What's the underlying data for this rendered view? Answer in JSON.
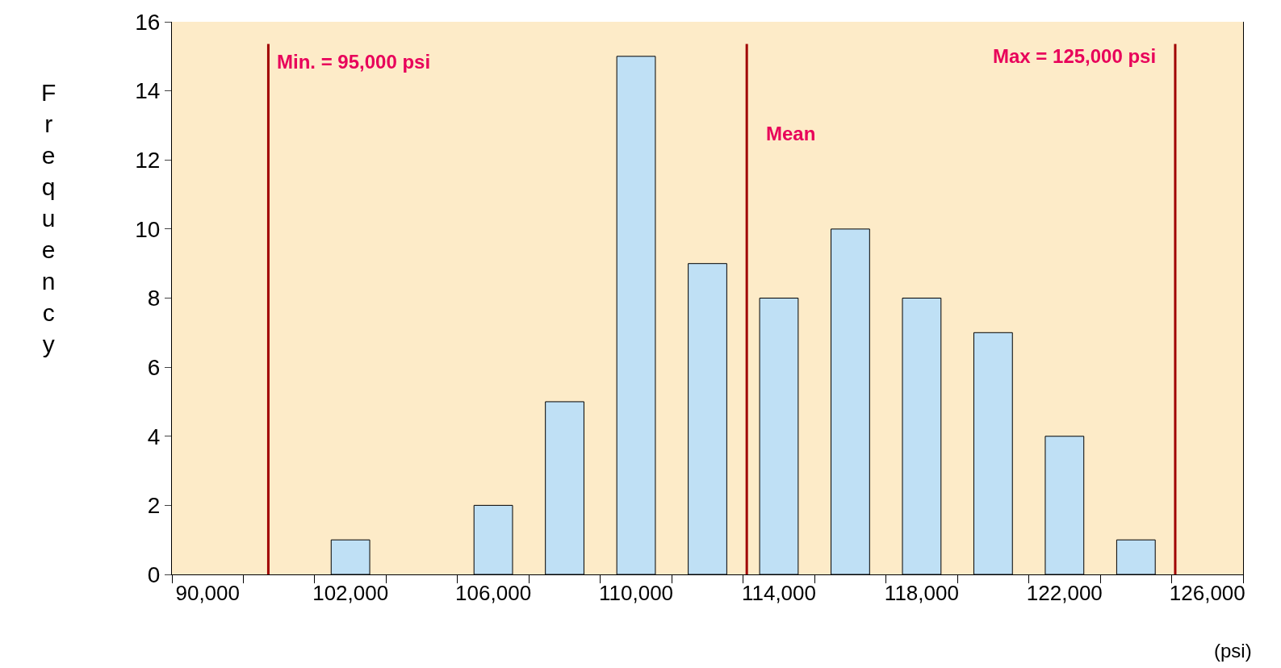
{
  "chart_data": {
    "type": "bar",
    "categories": [
      "90,000",
      null,
      "102,000",
      null,
      "106,000",
      null,
      "110,000",
      null,
      "114,000",
      null,
      "118,000",
      null,
      "122,000",
      null,
      "126,000"
    ],
    "values": [
      0,
      0,
      1,
      0,
      2,
      5,
      15,
      9,
      8,
      10,
      8,
      7,
      4,
      1,
      0
    ],
    "color": "#bfe0f5",
    "ylabel": "Frequency",
    "xlabel": "(psi)",
    "ylim": [
      0,
      16
    ],
    "yticks": [
      0,
      2,
      4,
      6,
      8,
      10,
      12,
      14,
      16
    ],
    "annotations": [
      "Min. = 95,000 psi",
      "Mean",
      "Max = 125,000 psi"
    ],
    "grid": false,
    "legend": false
  }
}
